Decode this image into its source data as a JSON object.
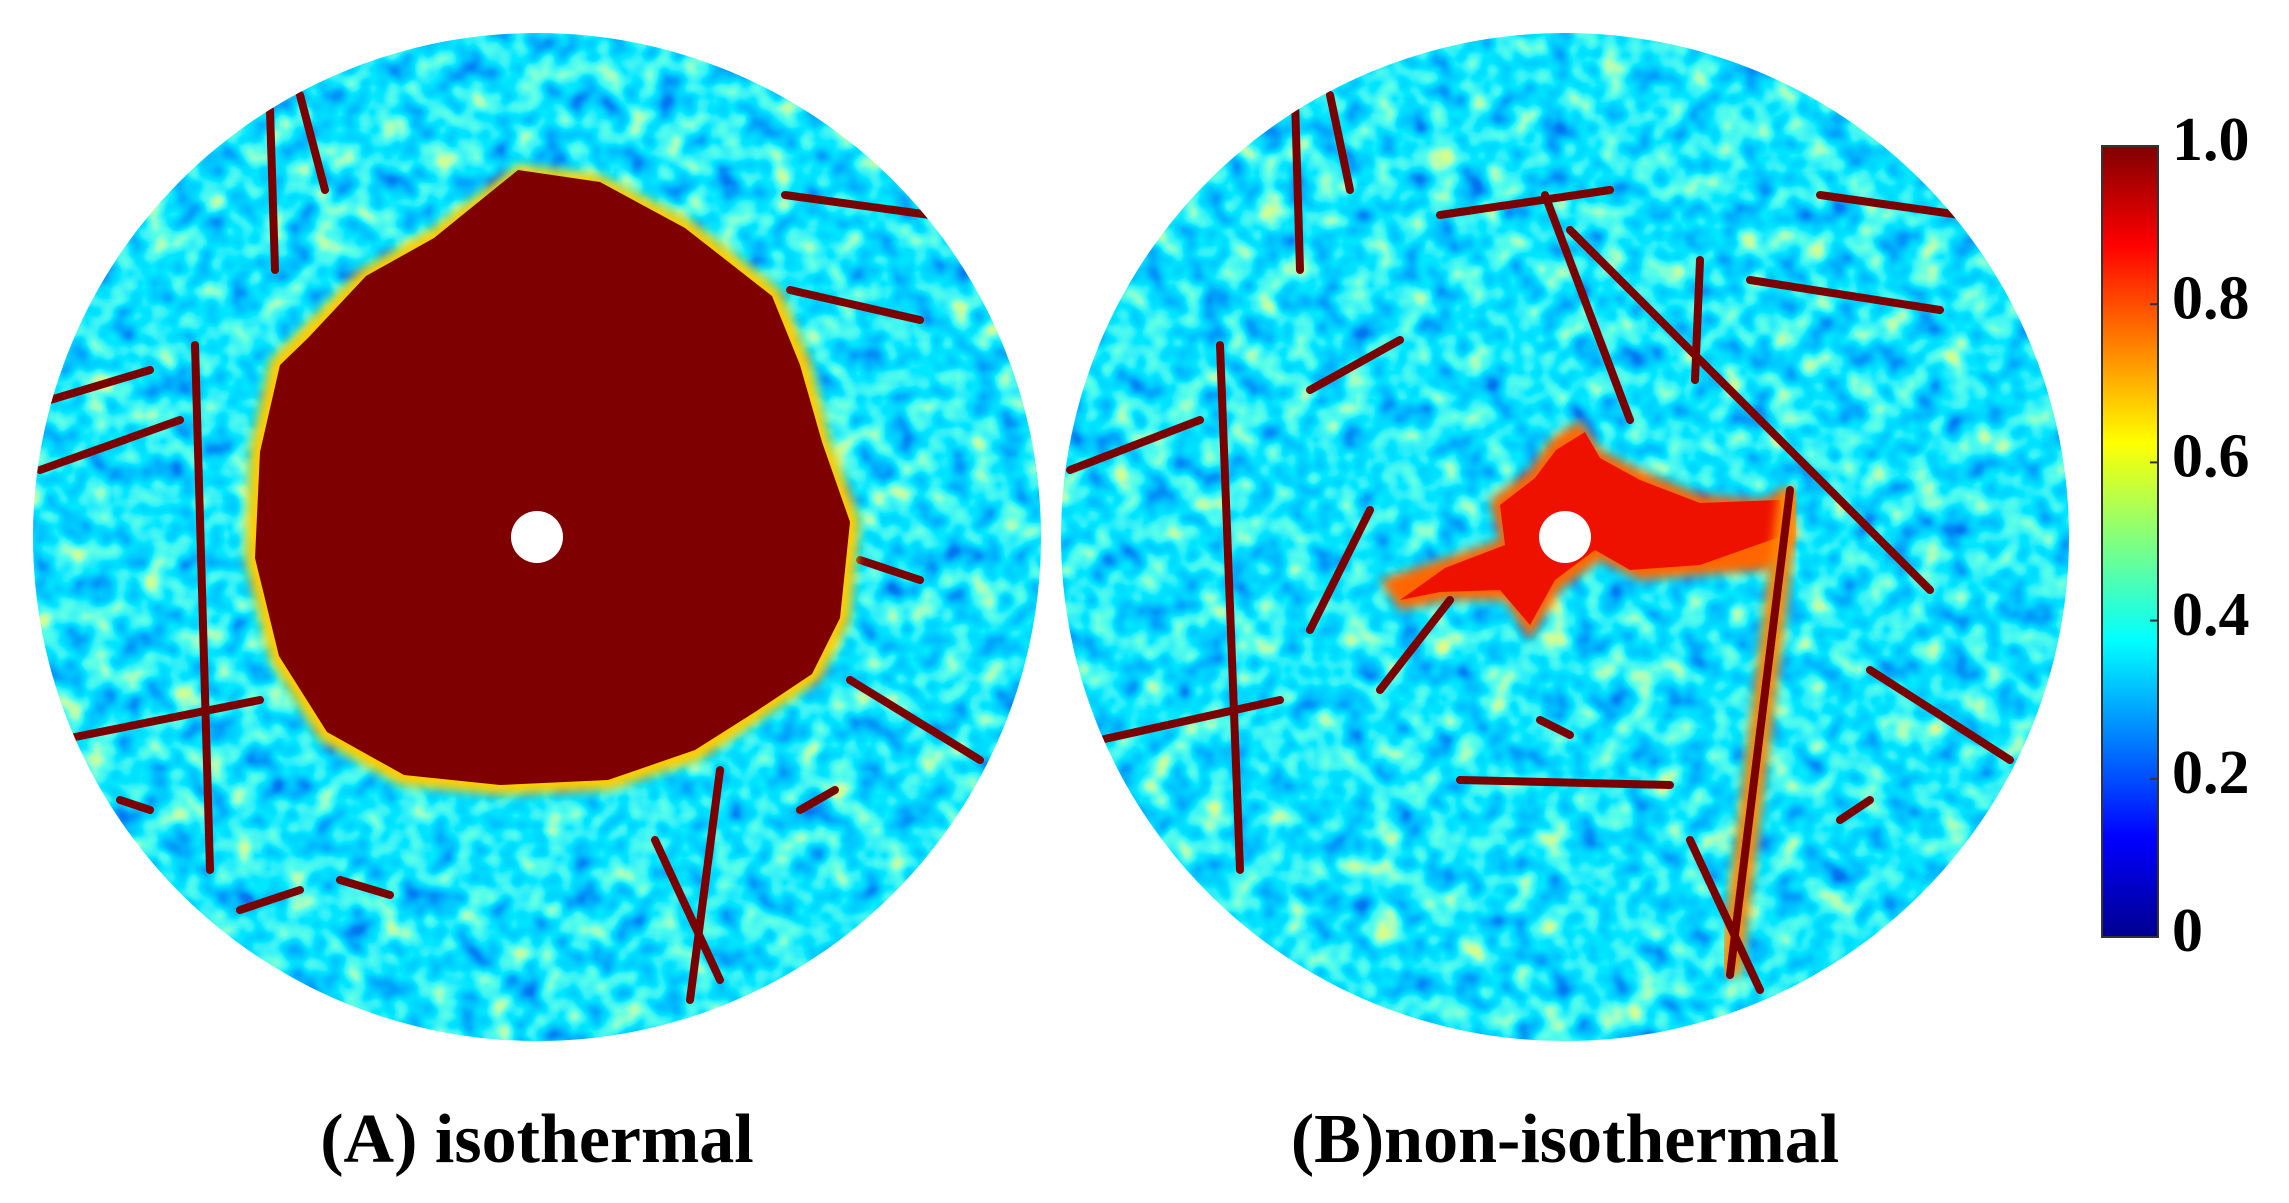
{
  "panels": [
    {
      "label": "(A) isothermal"
    },
    {
      "label": "(B)non-isothermal"
    }
  ],
  "colorbar": {
    "lim": [
      0,
      1
    ],
    "ticks": [
      0,
      0.2,
      0.4,
      0.6,
      0.8,
      {
        "value": 1,
        "label": "1.0"
      }
    ]
  }
}
